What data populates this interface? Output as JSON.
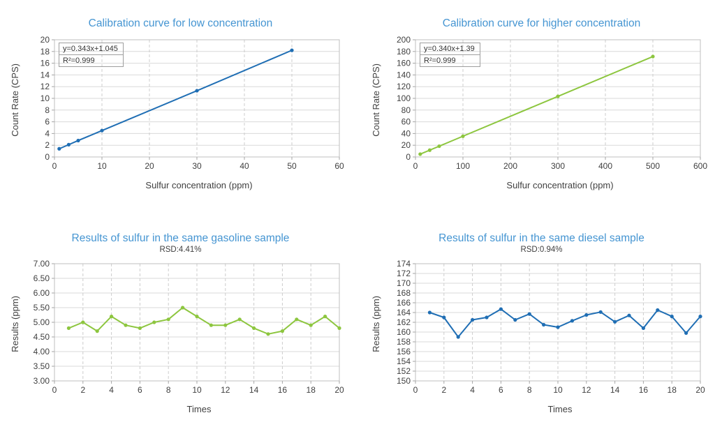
{
  "colors": {
    "title_blue": "#4595d2",
    "series_blue": "#1f6eb4",
    "series_green": "#8dc63f",
    "axis_text": "#3f3f3f",
    "grid_solid": "#d9d9d9",
    "grid_dashed": "#cccccc",
    "plot_border": "#bfbfbf",
    "tick_mark": "#a6a6a6",
    "equation_box_border": "#9e9e9e"
  },
  "chart_data": [
    {
      "type": "line",
      "title": "Calibration curve for low concentration",
      "subtitle": "",
      "equation": "y=0.343x+1.045",
      "r2": "R²=0.999",
      "xlabel": "Sulfur concentration (ppm)",
      "ylabel": "Count Rate (CPS)",
      "color": "#1f6eb4",
      "xlim": [
        0,
        60
      ],
      "xstep": 10,
      "ylim": [
        0,
        20
      ],
      "ystep": 2,
      "y_decimals": 0,
      "grid": true,
      "legend": "none",
      "x": [
        1,
        3,
        5,
        10,
        30,
        50
      ],
      "y": [
        1.4,
        2.1,
        2.8,
        4.5,
        11.3,
        18.2
      ]
    },
    {
      "type": "line",
      "title": "Calibration curve for higher concentration",
      "subtitle": "",
      "equation": "y=0.340x+1.39",
      "r2": "R²=0.999",
      "xlabel": "Sulfur concentration (ppm)",
      "ylabel": "Count Rate (CPS)",
      "color": "#8dc63f",
      "xlim": [
        0,
        600
      ],
      "xstep": 100,
      "ylim": [
        0,
        200
      ],
      "ystep": 20,
      "y_decimals": 0,
      "grid": true,
      "legend": "none",
      "x": [
        10,
        30,
        50,
        100,
        300,
        500
      ],
      "y": [
        4.8,
        11.6,
        18.4,
        35.4,
        103.4,
        171.4
      ]
    },
    {
      "type": "line",
      "title": "Results of sulfur in the same gasoline sample",
      "subtitle": "RSD:4.41%",
      "xlabel": "Times",
      "ylabel": "Results (ppm)",
      "color": "#8dc63f",
      "xlim": [
        0,
        20
      ],
      "xstep": 2,
      "ylim": [
        3,
        7
      ],
      "ystep": 0.5,
      "y_decimals": 2,
      "grid": true,
      "legend": "none",
      "x": [
        1,
        2,
        3,
        4,
        5,
        6,
        7,
        8,
        9,
        10,
        11,
        12,
        13,
        14,
        15,
        16,
        17,
        18,
        19,
        20
      ],
      "y": [
        4.8,
        5.0,
        4.7,
        5.2,
        4.9,
        4.8,
        5.0,
        5.1,
        5.5,
        5.2,
        4.9,
        4.9,
        5.1,
        4.8,
        4.6,
        4.7,
        5.1,
        4.9,
        5.2,
        4.8
      ]
    },
    {
      "type": "line",
      "title": "Results of sulfur in the same diesel sample",
      "subtitle": "RSD:0.94%",
      "xlabel": "Times",
      "ylabel": "Results (ppm)",
      "color": "#1f6eb4",
      "xlim": [
        0,
        20
      ],
      "xstep": 2,
      "ylim": [
        150,
        174
      ],
      "ystep": 2,
      "y_decimals": 0,
      "grid": true,
      "legend": "none",
      "x": [
        1,
        2,
        3,
        4,
        5,
        6,
        7,
        8,
        9,
        10,
        11,
        12,
        13,
        14,
        15,
        16,
        17,
        18,
        19,
        20
      ],
      "y": [
        164,
        163,
        159,
        162.5,
        163,
        164.7,
        162.5,
        163.7,
        161.5,
        161,
        162.3,
        163.5,
        164.1,
        162.1,
        163.4,
        160.8,
        164.5,
        163.2,
        159.8,
        163.2
      ]
    }
  ]
}
